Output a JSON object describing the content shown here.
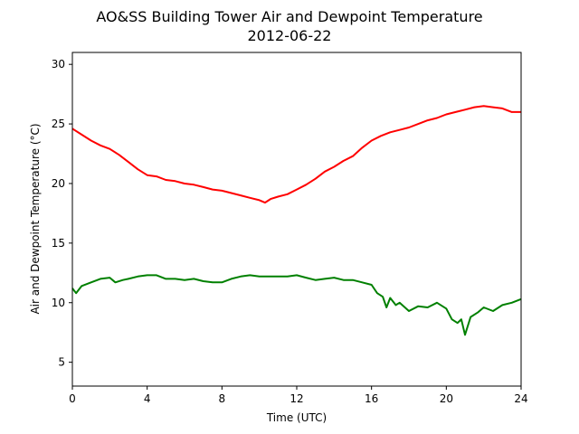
{
  "chart_data": {
    "type": "line",
    "title": "AO&SS Building Tower Air and Dewpoint Temperature",
    "subtitle": "2012-06-22",
    "xlabel": "Time (UTC)",
    "ylabel": "Air and Dewpoint Temperature (°C)",
    "xlim": [
      0,
      24
    ],
    "ylim": [
      3,
      31
    ],
    "x_ticks": [
      0,
      4,
      8,
      12,
      16,
      20,
      24
    ],
    "y_ticks": [
      5,
      10,
      15,
      20,
      25,
      30
    ],
    "grid": false,
    "legend": "none",
    "series": [
      {
        "color": "#ff0000",
        "points": [
          [
            0,
            24.6
          ],
          [
            0.5,
            24.1
          ],
          [
            1,
            23.6
          ],
          [
            1.5,
            23.2
          ],
          [
            2,
            22.9
          ],
          [
            2.5,
            22.4
          ],
          [
            3,
            21.8
          ],
          [
            3.5,
            21.2
          ],
          [
            4,
            20.7
          ],
          [
            4.5,
            20.6
          ],
          [
            5,
            20.3
          ],
          [
            5.5,
            20.2
          ],
          [
            6,
            20.0
          ],
          [
            6.5,
            19.9
          ],
          [
            7,
            19.7
          ],
          [
            7.5,
            19.5
          ],
          [
            8,
            19.4
          ],
          [
            8.5,
            19.2
          ],
          [
            9,
            19.0
          ],
          [
            9.5,
            18.8
          ],
          [
            10,
            18.6
          ],
          [
            10.3,
            18.4
          ],
          [
            10.6,
            18.7
          ],
          [
            11,
            18.9
          ],
          [
            11.5,
            19.1
          ],
          [
            12,
            19.5
          ],
          [
            12.5,
            19.9
          ],
          [
            13,
            20.4
          ],
          [
            13.5,
            21.0
          ],
          [
            14,
            21.4
          ],
          [
            14.5,
            21.9
          ],
          [
            15,
            22.3
          ],
          [
            15.5,
            23.0
          ],
          [
            16,
            23.6
          ],
          [
            16.5,
            24.0
          ],
          [
            17,
            24.3
          ],
          [
            17.5,
            24.5
          ],
          [
            18,
            24.7
          ],
          [
            18.5,
            25.0
          ],
          [
            19,
            25.3
          ],
          [
            19.5,
            25.5
          ],
          [
            20,
            25.8
          ],
          [
            20.5,
            26.0
          ],
          [
            21,
            26.2
          ],
          [
            21.5,
            26.4
          ],
          [
            22,
            26.5
          ],
          [
            22.5,
            26.4
          ],
          [
            23,
            26.3
          ],
          [
            23.5,
            26.0
          ],
          [
            24,
            26.0
          ]
        ]
      },
      {
        "color": "#008000",
        "points": [
          [
            0,
            11.2
          ],
          [
            0.2,
            10.8
          ],
          [
            0.5,
            11.4
          ],
          [
            1,
            11.7
          ],
          [
            1.5,
            12.0
          ],
          [
            2,
            12.1
          ],
          [
            2.3,
            11.7
          ],
          [
            2.7,
            11.9
          ],
          [
            3,
            12.0
          ],
          [
            3.5,
            12.2
          ],
          [
            4,
            12.3
          ],
          [
            4.5,
            12.3
          ],
          [
            5,
            12.0
          ],
          [
            5.5,
            12.0
          ],
          [
            6,
            11.9
          ],
          [
            6.5,
            12.0
          ],
          [
            7,
            11.8
          ],
          [
            7.5,
            11.7
          ],
          [
            8,
            11.7
          ],
          [
            8.5,
            12.0
          ],
          [
            9,
            12.2
          ],
          [
            9.5,
            12.3
          ],
          [
            10,
            12.2
          ],
          [
            10.5,
            12.2
          ],
          [
            11,
            12.2
          ],
          [
            11.5,
            12.2
          ],
          [
            12,
            12.3
          ],
          [
            12.5,
            12.1
          ],
          [
            13,
            11.9
          ],
          [
            13.5,
            12.0
          ],
          [
            14,
            12.1
          ],
          [
            14.5,
            11.9
          ],
          [
            15,
            11.9
          ],
          [
            15.5,
            11.7
          ],
          [
            16,
            11.5
          ],
          [
            16.3,
            10.8
          ],
          [
            16.6,
            10.5
          ],
          [
            16.8,
            9.6
          ],
          [
            17,
            10.4
          ],
          [
            17.3,
            9.8
          ],
          [
            17.5,
            10.0
          ],
          [
            18,
            9.3
          ],
          [
            18.5,
            9.7
          ],
          [
            19,
            9.6
          ],
          [
            19.5,
            10.0
          ],
          [
            20,
            9.5
          ],
          [
            20.3,
            8.6
          ],
          [
            20.6,
            8.3
          ],
          [
            20.8,
            8.6
          ],
          [
            21,
            7.3
          ],
          [
            21.3,
            8.8
          ],
          [
            21.7,
            9.2
          ],
          [
            22,
            9.6
          ],
          [
            22.5,
            9.3
          ],
          [
            23,
            9.8
          ],
          [
            23.5,
            10.0
          ],
          [
            24,
            10.3
          ]
        ]
      }
    ]
  }
}
